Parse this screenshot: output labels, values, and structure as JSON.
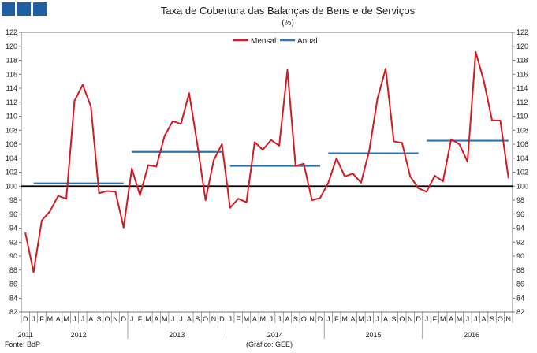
{
  "header": {
    "title": "Taxa de Cobertura das Balanças de Bens e de Serviços",
    "unit": "(%)",
    "logo_color": "#1f5fa6"
  },
  "footer": {
    "source": "Fonte: BdP",
    "credit": "(Gráfico: GEE)"
  },
  "chart_data": {
    "type": "line",
    "title": "Taxa de Cobertura das Balanças de Bens e de Serviços",
    "subtitle": "(%)",
    "ylim": [
      82,
      122
    ],
    "y_ticks": [
      82,
      84,
      86,
      88,
      90,
      92,
      94,
      96,
      98,
      100,
      102,
      104,
      106,
      108,
      110,
      112,
      114,
      116,
      118,
      120,
      122
    ],
    "reference_line": 100,
    "legend": {
      "placement": "top-center",
      "entries": [
        "Mensal",
        "Anual"
      ]
    },
    "x_month_labels": [
      "D",
      "J",
      "F",
      "M",
      "A",
      "M",
      "J",
      "J",
      "A",
      "S",
      "O",
      "N",
      "D",
      "J",
      "F",
      "M",
      "A",
      "M",
      "J",
      "J",
      "A",
      "S",
      "O",
      "N",
      "D",
      "J",
      "F",
      "M",
      "A",
      "M",
      "J",
      "J",
      "A",
      "S",
      "O",
      "N",
      "D",
      "J",
      "F",
      "M",
      "A",
      "M",
      "J",
      "J",
      "A",
      "S",
      "O",
      "N",
      "D",
      "J",
      "F",
      "M",
      "A",
      "M",
      "J",
      "J",
      "A",
      "S",
      "O",
      "N"
    ],
    "x_year_labels": [
      {
        "label": "2011",
        "month_index": 0
      },
      {
        "label": "2012",
        "month_index": 6.5
      },
      {
        "label": "2013",
        "month_index": 18.5
      },
      {
        "label": "2014",
        "month_index": 30.5
      },
      {
        "label": "2015",
        "month_index": 42.5
      },
      {
        "label": "2016",
        "month_index": 54.5
      }
    ],
    "series": [
      {
        "name": "Mensal",
        "color": "#d71920",
        "values": [
          93.3,
          87.7,
          95.1,
          96.4,
          98.6,
          98.2,
          112.2,
          114.5,
          111.4,
          99.0,
          99.3,
          99.2,
          94.1,
          102.5,
          98.7,
          103.0,
          102.8,
          107.2,
          109.3,
          108.9,
          113.3,
          106.0,
          98.0,
          103.7,
          106.0,
          96.9,
          98.2,
          97.7,
          106.3,
          105.2,
          106.6,
          105.8,
          116.6,
          102.9,
          103.2,
          98.0,
          98.3,
          100.5,
          104.0,
          101.4,
          101.8,
          100.5,
          105.1,
          112.5,
          116.8,
          106.4,
          106.2,
          101.4,
          99.7,
          99.2,
          101.5,
          100.7,
          106.7,
          106.0,
          103.5,
          119.2,
          115.0,
          109.4,
          109.4,
          101.2
        ]
      },
      {
        "name": "Anual",
        "color": "#2c75b5",
        "segments": [
          {
            "year": "2012",
            "start_index": 1,
            "end_index": 12,
            "value": 100.4
          },
          {
            "year": "2013",
            "start_index": 13,
            "end_index": 24,
            "value": 104.9
          },
          {
            "year": "2014",
            "start_index": 25,
            "end_index": 36,
            "value": 102.9
          },
          {
            "year": "2015",
            "start_index": 37,
            "end_index": 48,
            "value": 104.7
          },
          {
            "year": "2016",
            "start_index": 49,
            "end_index": 59,
            "value": 106.5
          }
        ]
      }
    ]
  }
}
